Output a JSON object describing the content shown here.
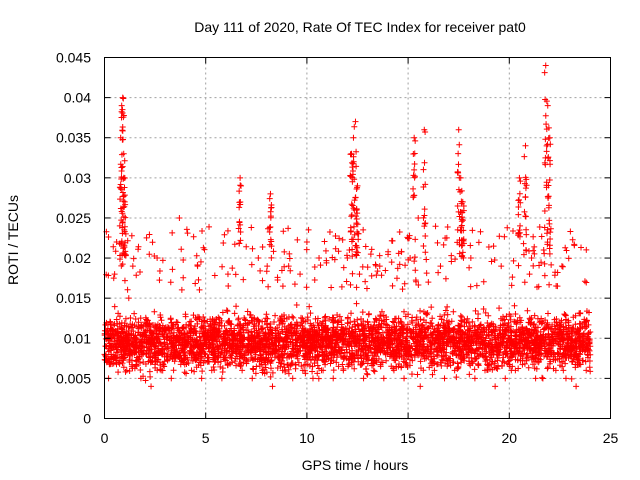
{
  "chart_data": {
    "type": "scatter",
    "title": "Day 111 of 2020, Rate Of TEC Index for receiver pat0",
    "xlabel": "GPS time / hours",
    "ylabel": "ROTI / TECUs",
    "xlim": [
      0,
      25
    ],
    "ylim": [
      0,
      0.045
    ],
    "x_ticks": [
      0,
      5,
      10,
      15,
      20,
      25
    ],
    "x_tick_labels": [
      "0",
      "5",
      "10",
      "15",
      "20",
      "25"
    ],
    "y_ticks": [
      0,
      0.005,
      0.01,
      0.015,
      0.02,
      0.025,
      0.03,
      0.035,
      0.04,
      0.045
    ],
    "y_tick_labels": [
      "0",
      "0.005",
      "0.01",
      "0.015",
      "0.02",
      "0.025",
      "0.03",
      "0.035",
      "0.04",
      "0.045"
    ],
    "grid": true,
    "marker": "+",
    "color": "#ff0000",
    "series": [
      {
        "name": "ROTI",
        "x": [
          0.0,
          0.3,
          0.6,
          0.8,
          0.85,
          0.9,
          0.95,
          1.0,
          1.2,
          1.5,
          2.0,
          2.5,
          3.0,
          3.5,
          3.7,
          4.0,
          4.5,
          5.0,
          5.5,
          6.0,
          6.5,
          6.7,
          7.0,
          7.5,
          8.0,
          8.2,
          8.5,
          9.0,
          9.5,
          10.0,
          10.5,
          11.0,
          11.5,
          12.0,
          12.2,
          12.3,
          12.4,
          12.5,
          12.6,
          13.0,
          13.5,
          14.0,
          14.5,
          15.0,
          15.3,
          15.5,
          15.8,
          16.0,
          16.5,
          17.0,
          17.5,
          17.6,
          17.7,
          18.0,
          18.5,
          19.0,
          19.5,
          20.0,
          20.5,
          20.8,
          21.0,
          21.5,
          21.7,
          21.8,
          21.9,
          22.0,
          22.5,
          23.0,
          23.5,
          24.0,
          0.2,
          0.7,
          1.1,
          1.8,
          2.3,
          2.8,
          3.3,
          3.9,
          4.3,
          4.8,
          5.3,
          5.8,
          6.3,
          6.8,
          7.3,
          7.8,
          8.3,
          8.8,
          9.3,
          9.8,
          10.3,
          10.8,
          11.3,
          11.8,
          12.8,
          13.3,
          13.8,
          14.3,
          14.8,
          15.6,
          16.3,
          16.8,
          17.3,
          18.3,
          18.8,
          19.3,
          19.8,
          20.3,
          21.3,
          22.3,
          22.8,
          23.3,
          23.8,
          0.5,
          1.4,
          2.6,
          4.6,
          6.1,
          7.6,
          9.1,
          10.6,
          12.1,
          13.6,
          15.1,
          16.6,
          18.1,
          19.6,
          21.1,
          22.6
        ],
        "y": [
          0.008,
          0.012,
          0.022,
          0.035,
          0.039,
          0.04,
          0.033,
          0.027,
          0.015,
          0.01,
          0.012,
          0.009,
          0.011,
          0.008,
          0.025,
          0.013,
          0.009,
          0.008,
          0.012,
          0.01,
          0.014,
          0.03,
          0.011,
          0.009,
          0.013,
          0.028,
          0.01,
          0.009,
          0.012,
          0.022,
          0.011,
          0.009,
          0.012,
          0.02,
          0.033,
          0.035,
          0.037,
          0.029,
          0.018,
          0.012,
          0.01,
          0.011,
          0.009,
          0.013,
          0.035,
          0.025,
          0.036,
          0.017,
          0.01,
          0.011,
          0.036,
          0.03,
          0.027,
          0.012,
          0.01,
          0.009,
          0.011,
          0.013,
          0.03,
          0.034,
          0.018,
          0.012,
          0.021,
          0.044,
          0.039,
          0.035,
          0.012,
          0.009,
          0.008,
          0.009,
          0.005,
          0.007,
          0.006,
          0.005,
          0.004,
          0.006,
          0.005,
          0.007,
          0.006,
          0.005,
          0.006,
          0.005,
          0.007,
          0.006,
          0.005,
          0.006,
          0.004,
          0.006,
          0.005,
          0.006,
          0.005,
          0.006,
          0.005,
          0.006,
          0.005,
          0.006,
          0.005,
          0.006,
          0.005,
          0.004,
          0.006,
          0.005,
          0.006,
          0.005,
          0.006,
          0.004,
          0.005,
          0.006,
          0.005,
          0.006,
          0.005,
          0.004,
          0.006,
          0.018,
          0.019,
          0.02,
          0.019,
          0.018,
          0.02,
          0.019,
          0.02,
          0.021,
          0.019,
          0.02,
          0.019,
          0.02,
          0.019,
          0.02,
          0.019
        ]
      }
    ]
  }
}
